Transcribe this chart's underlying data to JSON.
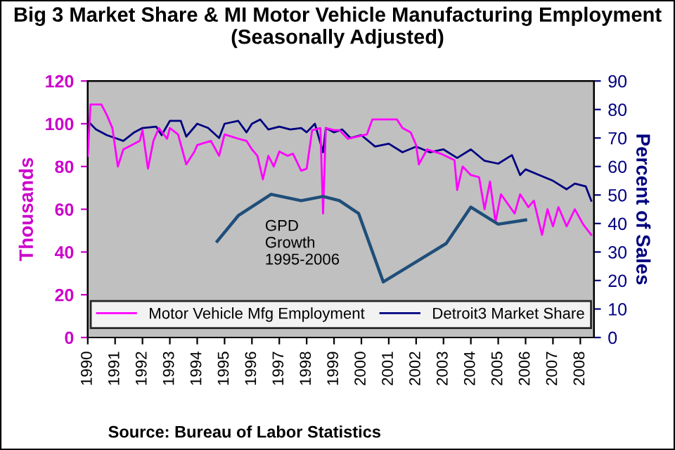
{
  "chart_data": {
    "type": "line",
    "title": "Big 3 Market Share & MI Motor Vehicle Manufacturing Employment (Seasonally Adjusted)",
    "ylabel": "Thousands",
    "y2label": "Percent of Sales",
    "annotations": [
      "GPD\nGrowth\n1995-2006",
      "Source: Bureau of Labor Statistics"
    ],
    "xlim": [
      1990,
      2008.5
    ],
    "xticks": [
      {
        "value": 1990,
        "label": "1990"
      },
      {
        "value": 1991,
        "label": "1991"
      },
      {
        "value": 1992,
        "label": "1992"
      },
      {
        "value": 1993,
        "label": "1993"
      },
      {
        "value": 1994,
        "label": "1994"
      },
      {
        "value": 1995,
        "label": "1995"
      },
      {
        "value": 1996,
        "label": "1996"
      },
      {
        "value": 1997,
        "label": "1997"
      },
      {
        "value": 1998,
        "label": "1998"
      },
      {
        "value": 1999,
        "label": "1999"
      },
      {
        "value": 2000,
        "label": "2000"
      },
      {
        "value": 2001,
        "label": "2001"
      },
      {
        "value": 2002,
        "label": "2002"
      },
      {
        "value": 2003,
        "label": "2003"
      },
      {
        "value": 2004,
        "label": "2004"
      },
      {
        "value": 2005,
        "label": "2005"
      },
      {
        "value": 2006,
        "label": "2006"
      },
      {
        "value": 2007,
        "label": "2007"
      },
      {
        "value": 2008,
        "label": "2008"
      }
    ],
    "ylim": [
      0,
      120
    ],
    "yticks": [
      0,
      20,
      40,
      60,
      80,
      100,
      120
    ],
    "y2lim": [
      0,
      90
    ],
    "y2ticks": [
      0,
      10,
      20,
      30,
      40,
      50,
      60,
      70,
      80,
      90
    ],
    "legend": "bottom",
    "grid": false,
    "marker": "none",
    "series": [
      {
        "name": "Motor Vehicle Mfg Employment",
        "color": "#ff00ff",
        "axis": "y",
        "x": [
          1990.0,
          1990.1,
          1990.5,
          1990.7,
          1990.9,
          1991.1,
          1991.3,
          1991.6,
          1991.9,
          1992.0,
          1992.2,
          1992.4,
          1992.6,
          1992.9,
          1993.0,
          1993.3,
          1993.6,
          1993.9,
          1994.0,
          1994.5,
          1994.8,
          1995.0,
          1995.5,
          1995.8,
          1996.0,
          1996.2,
          1996.4,
          1996.6,
          1996.8,
          1997.0,
          1997.3,
          1997.5,
          1997.8,
          1998.0,
          1998.2,
          1998.5,
          1998.6,
          1998.7,
          1999.0,
          1999.2,
          1999.5,
          2000.2,
          2000.4,
          2001.3,
          2001.5,
          2001.8,
          2002.0,
          2002.1,
          2002.4,
          2002.9,
          2003.4,
          2003.5,
          2003.7,
          2004.0,
          2004.3,
          2004.5,
          2004.7,
          2004.9,
          2005.1,
          2005.6,
          2005.8,
          2006.1,
          2006.3,
          2006.6,
          2006.8,
          2007.0,
          2007.2,
          2007.5,
          2007.8,
          2008.1,
          2008.4
        ],
        "values": [
          85,
          109,
          109,
          104,
          98,
          80,
          88,
          90,
          92,
          97,
          79,
          92,
          98,
          93,
          98,
          95,
          81,
          87,
          90,
          92,
          85,
          95,
          93,
          92,
          88,
          85,
          74,
          85,
          80,
          87,
          85,
          86,
          78,
          79,
          97,
          98,
          58,
          98,
          97,
          97,
          93,
          95,
          102,
          102,
          98,
          96,
          90,
          81,
          88,
          86,
          83,
          69,
          80,
          76,
          75,
          60,
          73,
          54,
          67,
          58,
          67,
          61,
          64,
          48,
          60,
          52,
          61,
          52,
          60,
          53,
          48
        ]
      },
      {
        "name": "Detroit3 Market Share",
        "color": "#000080",
        "axis": "y2",
        "x": [
          1990.0,
          1990.3,
          1990.7,
          1991.0,
          1991.3,
          1991.7,
          1992.0,
          1992.5,
          1992.7,
          1993.0,
          1993.4,
          1993.6,
          1994.0,
          1994.4,
          1994.8,
          1995.0,
          1995.5,
          1995.8,
          1996.0,
          1996.3,
          1996.6,
          1997.0,
          1997.4,
          1997.8,
          1998.0,
          1998.3,
          1998.6,
          1998.7,
          1999.0,
          1999.3,
          1999.6,
          2000.0,
          2000.5,
          2001.0,
          2001.5,
          2002.0,
          2002.5,
          2003.0,
          2003.5,
          2004.0,
          2004.5,
          2005.0,
          2005.5,
          2005.8,
          2006.0,
          2006.5,
          2007.0,
          2007.5,
          2007.8,
          2008.2,
          2008.4
        ],
        "values": [
          76,
          73,
          71,
          70,
          69,
          72,
          73.5,
          74,
          71,
          76,
          76,
          70.5,
          75,
          73.5,
          70,
          75,
          76,
          72,
          75,
          76.5,
          73,
          74,
          73,
          73.5,
          72,
          75,
          65,
          73.5,
          72,
          73,
          70,
          71,
          67,
          68,
          65,
          67,
          65,
          66,
          63,
          66,
          62,
          61,
          64,
          57,
          59,
          57,
          55,
          52,
          54,
          53,
          48
        ]
      },
      {
        "color": "#1f4e79",
        "axis": "y",
        "x": [
          1994.73,
          1995.5,
          1996.7,
          1997.8,
          1998.6,
          1999.2,
          1999.9,
          2000.8,
          2001.95,
          2003.1,
          2004.0,
          2005.0,
          2006.0
        ],
        "values": [
          45,
          57,
          67,
          64,
          66,
          64,
          58,
          26,
          35,
          44,
          61,
          53,
          55
        ]
      }
    ]
  }
}
